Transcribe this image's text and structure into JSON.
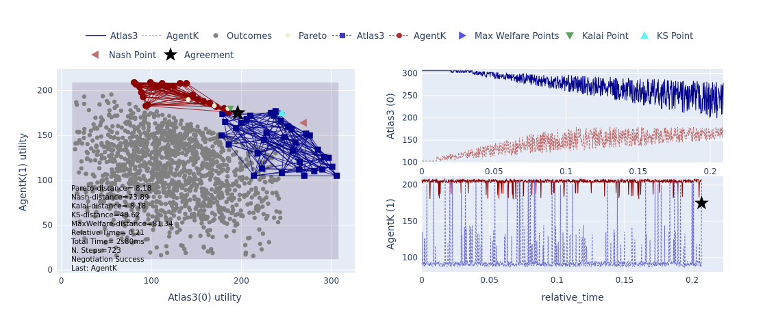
{
  "legend": [
    {
      "key": "atlas3-line",
      "label": "Atlas3",
      "symbol": "line-solid",
      "color": "#00008b"
    },
    {
      "key": "agentk-line",
      "label": "AgentK",
      "symbol": "line-dash",
      "color": "#8b0000"
    },
    {
      "key": "outcomes",
      "label": "Outcomes",
      "symbol": "circle",
      "color": "#808080"
    },
    {
      "key": "pareto",
      "label": "Pareto",
      "symbol": "circle",
      "color": "#efefd6"
    },
    {
      "key": "atlas3-offers",
      "label": "Atlas3",
      "symbol": "square-dash",
      "color": "#00008b"
    },
    {
      "key": "agentk-offers",
      "label": "AgentK",
      "symbol": "circle-dash",
      "color": "#8b0000"
    },
    {
      "key": "max-welfare",
      "label": "Max Welfare Points",
      "symbol": "triangle-right",
      "color": "#5656e8"
    },
    {
      "key": "kalai",
      "label": "Kalai Point",
      "symbol": "triangle-down",
      "color": "#5fa35f"
    },
    {
      "key": "ks",
      "label": "KS Point",
      "symbol": "triangle-up",
      "color": "#5cf3f3"
    },
    {
      "key": "nash",
      "label": "Nash Point",
      "symbol": "triangle-left",
      "color": "#c07070"
    },
    {
      "key": "agreement",
      "label": "Agreement",
      "symbol": "star",
      "color": "#000000"
    }
  ],
  "stats": [
    "Pareto-distance= 8.18",
    "Nash-distance=73.89",
    "Kalai-distance= 8.18",
    "KS-distance=48.62",
    "MaxWelfare-distance=81.34",
    "Relative Time= 0.21",
    "Total Time= 2s80ms",
    "N. Steps=723",
    "Negotiation Success",
    "Last: AgentK"
  ],
  "colors": {
    "atlas3": "#00008b",
    "agentk": "#8b0000",
    "atlas3_faded": "#6b6bd0",
    "agentk_faded": "#c06a6a",
    "outcomes": "#808080",
    "plot_bg": "#e5ecf6",
    "region": "#54306c"
  },
  "chart_data": [
    {
      "type": "scatter",
      "title": "",
      "xlabel": "Atlas3(0) utility",
      "ylabel": "AgentK(1) utility",
      "xlim": [
        -5,
        326
      ],
      "ylim": [
        -3,
        224
      ],
      "xticks": [
        0,
        100,
        200,
        300
      ],
      "yticks": [
        0,
        50,
        100,
        150,
        200
      ],
      "grid": true,
      "feasible_region": {
        "x": [
          12,
          308
        ],
        "y": [
          12,
          209
        ]
      },
      "outcome_clusters": [
        {
          "cx": 90,
          "cy": 120,
          "sx": 42,
          "sy": 42,
          "n": 900
        },
        {
          "cx": 175,
          "cy": 95,
          "sx": 40,
          "sy": 35,
          "n": 500
        },
        {
          "cx": 150,
          "cy": 150,
          "sx": 30,
          "sy": 20,
          "n": 300
        }
      ],
      "atlas3_offers": {
        "x": [
          179,
          182,
          178,
          186,
          194,
          200,
          206,
          210,
          214,
          218,
          223,
          228,
          233,
          238,
          244,
          248,
          252,
          256,
          260,
          265,
          270,
          276,
          281,
          285,
          292,
          297,
          306,
          245,
          225,
          236,
          257,
          264,
          272,
          290,
          301
        ],
        "y": [
          174,
          165,
          150,
          140,
          158,
          164,
          168,
          172,
          105,
          130,
          113,
          153,
          175,
          177,
          166,
          148,
          160,
          157,
          142,
          120,
          105,
          150,
          110,
          134,
          126,
          125,
          105,
          108,
          145,
          172,
          133,
          112,
          152,
          112,
          115
        ]
      },
      "agentk_offers": {
        "x": [
          81,
          83,
          87,
          89,
          91,
          94,
          96,
          99,
          103,
          108,
          112,
          118,
          125,
          132,
          139,
          146,
          152,
          158,
          165,
          172,
          181,
          186
        ],
        "y": [
          209,
          207,
          204,
          198,
          193,
          183,
          184,
          209,
          206,
          205,
          208,
          205,
          205,
          208,
          208,
          195,
          190,
          188,
          186,
          182,
          180,
          176
        ]
      },
      "pareto": {
        "x": [
          141,
          170,
          185,
          196
        ],
        "y": [
          190,
          183,
          180,
          176
        ]
      },
      "max_welfare": {
        "x": [
          245
        ],
        "y": [
          175
        ]
      },
      "kalai": {
        "x": [
          188
        ],
        "y": [
          180
        ]
      },
      "ks": {
        "x": [
          245
        ],
        "y": [
          175
        ]
      },
      "nash": {
        "x": [
          269
        ],
        "y": [
          164
        ]
      },
      "agreement": {
        "x": [
          196
        ],
        "y": [
          175
        ]
      }
    },
    {
      "type": "line",
      "title": "",
      "xlabel": "",
      "ylabel": "Atlas3 (0)",
      "xlim": [
        0,
        0.209
      ],
      "ylim": [
        98,
        310
      ],
      "xticks": [
        0,
        0.05,
        0.1,
        0.15,
        0.2
      ],
      "xtick_labels": [
        "0",
        "0.05",
        "0.1",
        "0.15",
        "0.2"
      ],
      "yticks": [
        100,
        150,
        200,
        250,
        300
      ],
      "series": [
        {
          "name": "Atlas3",
          "style": "solid",
          "color": "#00008b",
          "start": 306,
          "low_start": 298,
          "low_end": 195,
          "jitter": 35
        },
        {
          "name": "AgentK",
          "style": "dash",
          "color": "#c06a6a",
          "start": 103,
          "high_end": 180,
          "jitter": 40
        }
      ]
    },
    {
      "type": "line",
      "title": "",
      "xlabel": "relative_time",
      "ylabel": "AgentK (1)",
      "xlim": [
        0,
        0.223
      ],
      "ylim": [
        80,
        212
      ],
      "xticks": [
        0,
        0.05,
        0.1,
        0.15,
        0.2
      ],
      "xtick_labels": [
        "0",
        "0.05",
        "0.1",
        "0.15",
        "0.2"
      ],
      "yticks": [
        100,
        150,
        200
      ],
      "series": [
        {
          "name": "AgentK",
          "style": "solid",
          "color": "#8b0000",
          "high": 208,
          "dips_to": 190
        },
        {
          "name": "Atlas3",
          "style": "dash",
          "color": "#6b6bd0",
          "base": 90,
          "spikes_to": 145
        }
      ],
      "agreement": {
        "x": 0.207,
        "y": 175
      }
    }
  ]
}
